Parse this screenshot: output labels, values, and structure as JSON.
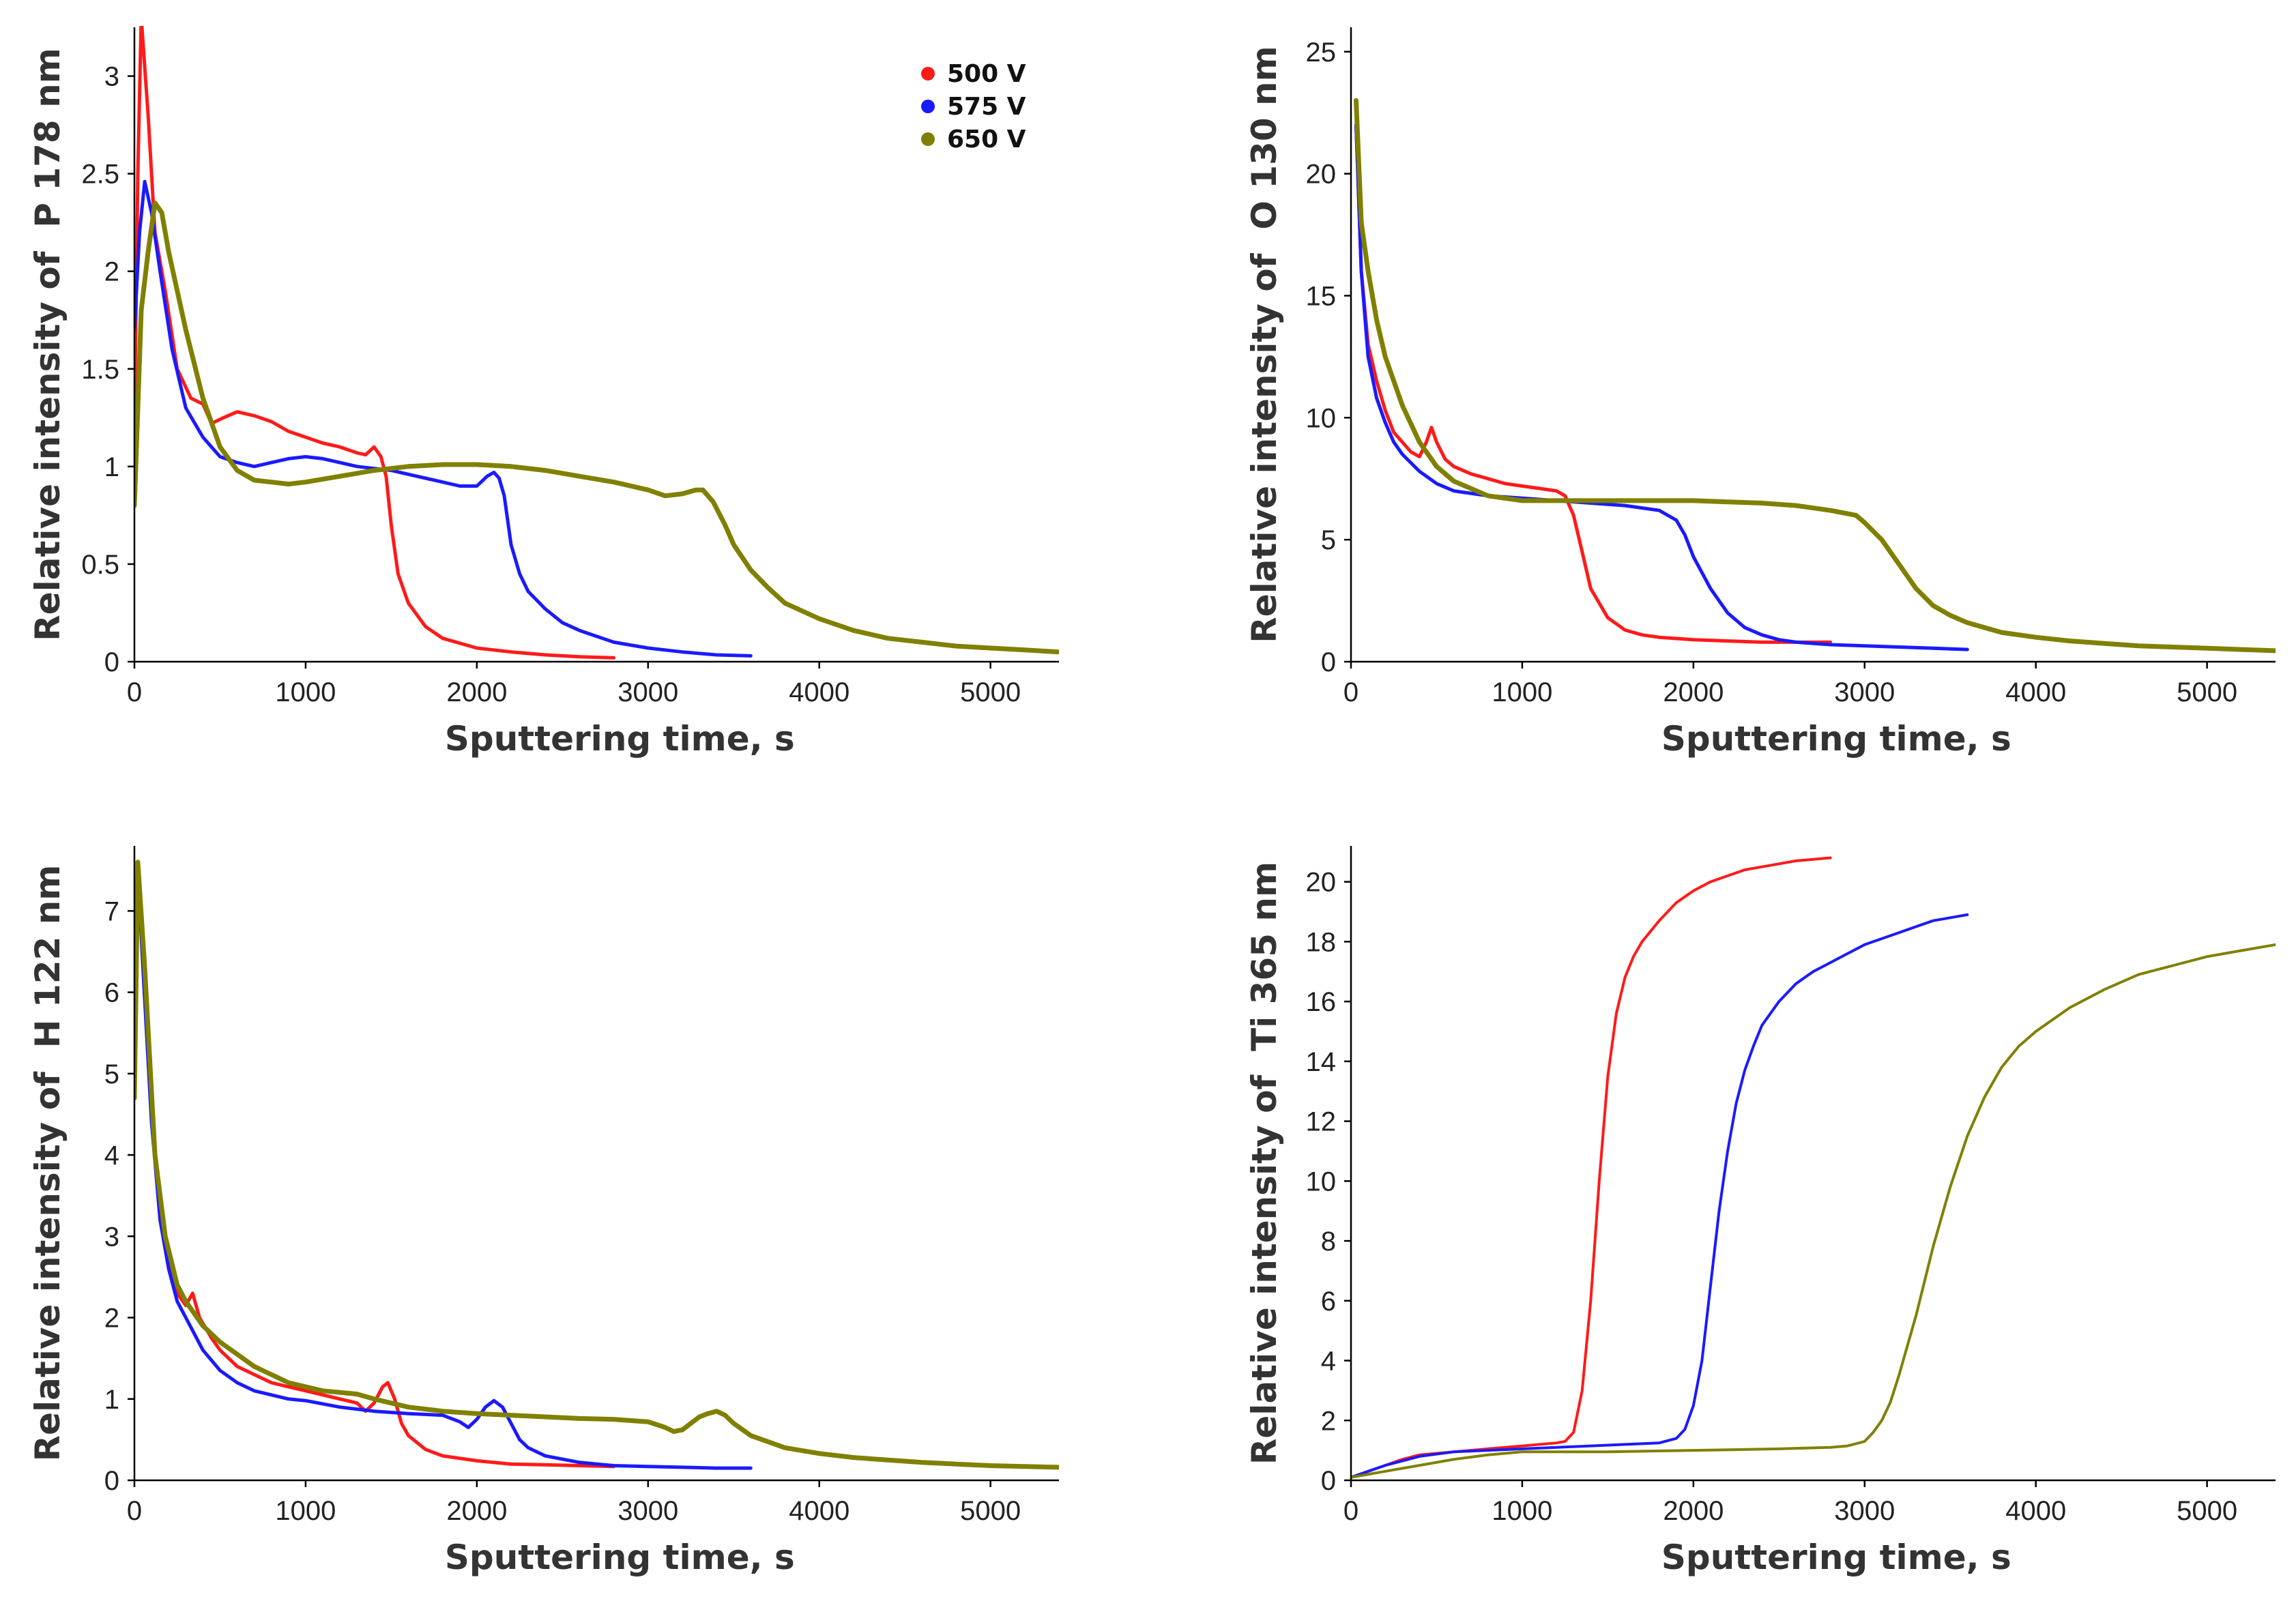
{
  "figure": {
    "background": "#ffffff"
  },
  "legend": {
    "entries": [
      {
        "label": "500 V",
        "color": "#ff1a1a"
      },
      {
        "label": "575 V",
        "color": "#1a1aff"
      },
      {
        "label": "650 V",
        "color": "#808000"
      }
    ]
  },
  "chart_data": [
    {
      "type": "line",
      "title": "",
      "xlabel": "Sputtering time, s",
      "ylabel": "Relative intensity of  P 178 nm",
      "xlim": [
        0,
        5400
      ],
      "ylim": [
        0,
        3.25
      ],
      "xticks": [
        0,
        1000,
        2000,
        3000,
        4000,
        5000
      ],
      "xtick_labels": [
        "0",
        "1000",
        "2000",
        "3000",
        "4000",
        "5000"
      ],
      "yticks": [
        0,
        0.5,
        1,
        1.5,
        2,
        2.5,
        3
      ],
      "ytick_labels": [
        "0",
        "0.5",
        "1",
        "1.5",
        "2",
        "2.5",
        "3"
      ],
      "legend": true,
      "series": [
        {
          "name": "500 V",
          "color": "#ff1a1a",
          "x": [
            0,
            20,
            40,
            80,
            120,
            180,
            250,
            330,
            400,
            450,
            520,
            600,
            700,
            800,
            900,
            1000,
            1100,
            1200,
            1300,
            1350,
            1400,
            1440,
            1470,
            1500,
            1540,
            1600,
            1700,
            1800,
            2000,
            2200,
            2400,
            2600,
            2800
          ],
          "y": [
            1.2,
            2.5,
            3.3,
            2.8,
            2.2,
            1.9,
            1.5,
            1.35,
            1.32,
            1.22,
            1.25,
            1.28,
            1.26,
            1.23,
            1.18,
            1.15,
            1.12,
            1.1,
            1.07,
            1.06,
            1.1,
            1.05,
            0.95,
            0.7,
            0.45,
            0.3,
            0.18,
            0.12,
            0.07,
            0.05,
            0.035,
            0.025,
            0.02
          ]
        },
        {
          "name": "575 V",
          "color": "#1a1aff",
          "x": [
            0,
            30,
            60,
            100,
            150,
            220,
            300,
            400,
            500,
            600,
            700,
            800,
            900,
            1000,
            1100,
            1200,
            1300,
            1400,
            1500,
            1600,
            1700,
            1800,
            1900,
            2000,
            2060,
            2100,
            2130,
            2160,
            2200,
            2250,
            2300,
            2400,
            2500,
            2600,
            2800,
            3000,
            3200,
            3400,
            3600
          ],
          "y": [
            1.7,
            2.2,
            2.46,
            2.3,
            2.0,
            1.6,
            1.3,
            1.15,
            1.05,
            1.02,
            1.0,
            1.02,
            1.04,
            1.05,
            1.04,
            1.02,
            1.0,
            0.99,
            0.98,
            0.96,
            0.94,
            0.92,
            0.9,
            0.9,
            0.95,
            0.97,
            0.94,
            0.85,
            0.6,
            0.45,
            0.36,
            0.27,
            0.2,
            0.16,
            0.1,
            0.07,
            0.05,
            0.035,
            0.03
          ]
        },
        {
          "name": "650 V",
          "color": "#808000",
          "x": [
            0,
            40,
            80,
            120,
            160,
            200,
            300,
            400,
            500,
            600,
            700,
            800,
            900,
            1000,
            1200,
            1400,
            1600,
            1800,
            2000,
            2200,
            2400,
            2600,
            2800,
            3000,
            3100,
            3200,
            3280,
            3320,
            3380,
            3450,
            3500,
            3600,
            3700,
            3800,
            4000,
            4200,
            4400,
            4600,
            4800,
            5000,
            5200,
            5400
          ],
          "y": [
            0.8,
            1.8,
            2.1,
            2.35,
            2.3,
            2.1,
            1.7,
            1.35,
            1.1,
            0.98,
            0.93,
            0.92,
            0.91,
            0.92,
            0.95,
            0.98,
            1.0,
            1.01,
            1.01,
            1.0,
            0.98,
            0.95,
            0.92,
            0.88,
            0.85,
            0.86,
            0.88,
            0.88,
            0.82,
            0.7,
            0.6,
            0.47,
            0.38,
            0.3,
            0.22,
            0.16,
            0.12,
            0.1,
            0.08,
            0.07,
            0.06,
            0.05
          ]
        }
      ]
    },
    {
      "type": "line",
      "title": "",
      "xlabel": "Sputtering time, s",
      "ylabel": "Relative intensity of  O 130 nm",
      "xlim": [
        0,
        5400
      ],
      "ylim": [
        0,
        26
      ],
      "xticks": [
        0,
        1000,
        2000,
        3000,
        4000,
        5000
      ],
      "xtick_labels": [
        "0",
        "1000",
        "2000",
        "3000",
        "4000",
        "5000"
      ],
      "yticks": [
        0,
        5,
        10,
        15,
        20,
        25
      ],
      "ytick_labels": [
        "0",
        "5",
        "10",
        "15",
        "20",
        "25"
      ],
      "legend": false,
      "series": [
        {
          "name": "500 V",
          "color": "#ff1a1a",
          "x": [
            30,
            60,
            100,
            150,
            200,
            250,
            300,
            350,
            400,
            440,
            470,
            500,
            550,
            600,
            700,
            800,
            900,
            1000,
            1100,
            1200,
            1250,
            1300,
            1350,
            1400,
            1500,
            1600,
            1700,
            1800,
            2000,
            2200,
            2400,
            2600,
            2800
          ],
          "y": [
            22,
            16,
            13,
            11.5,
            10.3,
            9.4,
            9.0,
            8.6,
            8.4,
            9.0,
            9.6,
            9.0,
            8.3,
            8.0,
            7.7,
            7.5,
            7.3,
            7.2,
            7.1,
            7.0,
            6.8,
            6.0,
            4.5,
            3.0,
            1.8,
            1.3,
            1.1,
            1.0,
            0.9,
            0.85,
            0.8,
            0.8,
            0.8
          ]
        },
        {
          "name": "575 V",
          "color": "#1a1aff",
          "x": [
            30,
            60,
            100,
            150,
            200,
            250,
            300,
            400,
            500,
            600,
            800,
            1000,
            1200,
            1400,
            1600,
            1800,
            1900,
            1950,
            2000,
            2100,
            2200,
            2300,
            2400,
            2500,
            2600,
            2800,
            3000,
            3200,
            3400,
            3600
          ],
          "y": [
            22,
            16,
            12.5,
            10.8,
            9.8,
            9.0,
            8.5,
            7.8,
            7.3,
            7.0,
            6.8,
            6.7,
            6.6,
            6.5,
            6.4,
            6.2,
            5.8,
            5.2,
            4.3,
            3.0,
            2.0,
            1.4,
            1.1,
            0.9,
            0.8,
            0.7,
            0.65,
            0.6,
            0.55,
            0.5
          ]
        },
        {
          "name": "650 V",
          "color": "#808000",
          "x": [
            30,
            60,
            100,
            150,
            200,
            300,
            400,
            500,
            600,
            800,
            1000,
            1200,
            1400,
            1600,
            1800,
            2000,
            2200,
            2400,
            2600,
            2800,
            2950,
            3000,
            3100,
            3200,
            3300,
            3400,
            3500,
            3600,
            3800,
            4000,
            4200,
            4400,
            4600,
            4800,
            5000,
            5200,
            5400
          ],
          "y": [
            23,
            18,
            16,
            14,
            12.5,
            10.5,
            9.0,
            8.0,
            7.4,
            6.8,
            6.6,
            6.6,
            6.6,
            6.6,
            6.6,
            6.6,
            6.55,
            6.5,
            6.4,
            6.2,
            6.0,
            5.7,
            5.0,
            4.0,
            3.0,
            2.3,
            1.9,
            1.6,
            1.2,
            1.0,
            0.85,
            0.75,
            0.65,
            0.6,
            0.55,
            0.5,
            0.45
          ]
        }
      ]
    },
    {
      "type": "line",
      "title": "",
      "xlabel": "Sputtering time, s",
      "ylabel": "Relative intensity of  H 122 nm",
      "xlim": [
        0,
        5400
      ],
      "ylim": [
        0,
        7.8
      ],
      "xticks": [
        0,
        1000,
        2000,
        3000,
        4000,
        5000
      ],
      "xtick_labels": [
        "0",
        "1000",
        "2000",
        "3000",
        "4000",
        "5000"
      ],
      "yticks": [
        0,
        1,
        2,
        3,
        4,
        5,
        6,
        7
      ],
      "ytick_labels": [
        "0",
        "1",
        "2",
        "3",
        "4",
        "5",
        "6",
        "7"
      ],
      "legend": false,
      "series": [
        {
          "name": "500 V",
          "color": "#ff1a1a",
          "x": [
            0,
            20,
            50,
            100,
            150,
            200,
            250,
            300,
            340,
            380,
            450,
            500,
            600,
            700,
            800,
            900,
            1000,
            1100,
            1200,
            1300,
            1350,
            1400,
            1450,
            1480,
            1520,
            1560,
            1600,
            1700,
            1800,
            2000,
            2200,
            2400,
            2600,
            2800
          ],
          "y": [
            5.5,
            7.6,
            6.5,
            4.5,
            3.3,
            2.7,
            2.3,
            2.15,
            2.3,
            2.0,
            1.75,
            1.6,
            1.4,
            1.3,
            1.2,
            1.15,
            1.1,
            1.05,
            1.0,
            0.95,
            0.85,
            0.95,
            1.15,
            1.2,
            1.0,
            0.7,
            0.55,
            0.38,
            0.3,
            0.24,
            0.2,
            0.19,
            0.18,
            0.17
          ]
        },
        {
          "name": "575 V",
          "color": "#1a1aff",
          "x": [
            0,
            20,
            50,
            100,
            150,
            200,
            250,
            300,
            400,
            500,
            600,
            700,
            800,
            900,
            1000,
            1200,
            1400,
            1600,
            1800,
            1900,
            1950,
            2000,
            2050,
            2100,
            2150,
            2200,
            2250,
            2300,
            2400,
            2600,
            2800,
            3000,
            3200,
            3400,
            3600
          ],
          "y": [
            6.0,
            7.5,
            6.3,
            4.4,
            3.2,
            2.6,
            2.2,
            2.0,
            1.6,
            1.35,
            1.2,
            1.1,
            1.05,
            1.0,
            0.98,
            0.9,
            0.85,
            0.82,
            0.8,
            0.72,
            0.65,
            0.75,
            0.9,
            0.98,
            0.9,
            0.7,
            0.5,
            0.4,
            0.3,
            0.22,
            0.18,
            0.17,
            0.16,
            0.15,
            0.15
          ]
        },
        {
          "name": "650 V",
          "color": "#808000",
          "x": [
            0,
            20,
            60,
            120,
            180,
            250,
            300,
            400,
            500,
            600,
            700,
            800,
            900,
            1000,
            1100,
            1200,
            1300,
            1400,
            1600,
            1800,
            2000,
            2200,
            2400,
            2600,
            2800,
            3000,
            3100,
            3150,
            3200,
            3250,
            3300,
            3350,
            3400,
            3450,
            3500,
            3600,
            3800,
            4000,
            4200,
            4400,
            4600,
            4800,
            5000,
            5200,
            5400
          ],
          "y": [
            4.7,
            7.6,
            6.3,
            4.0,
            3.0,
            2.4,
            2.2,
            1.9,
            1.7,
            1.55,
            1.4,
            1.3,
            1.2,
            1.15,
            1.1,
            1.08,
            1.06,
            1.0,
            0.9,
            0.85,
            0.82,
            0.8,
            0.78,
            0.76,
            0.75,
            0.72,
            0.65,
            0.6,
            0.62,
            0.7,
            0.78,
            0.82,
            0.85,
            0.8,
            0.7,
            0.55,
            0.4,
            0.33,
            0.28,
            0.25,
            0.22,
            0.2,
            0.18,
            0.17,
            0.16
          ]
        }
      ]
    },
    {
      "type": "line",
      "title": "",
      "xlabel": "Sputtering time, s",
      "ylabel": "Relative intensity of  Ti 365 nm",
      "xlim": [
        0,
        5400
      ],
      "ylim": [
        0,
        21.2
      ],
      "xticks": [
        0,
        1000,
        2000,
        3000,
        4000,
        5000
      ],
      "xtick_labels": [
        "0",
        "1000",
        "2000",
        "3000",
        "4000",
        "5000"
      ],
      "yticks": [
        0,
        2,
        4,
        6,
        8,
        10,
        12,
        14,
        16,
        18,
        20
      ],
      "ytick_labels": [
        "0",
        "2",
        "4",
        "6",
        "8",
        "10",
        "12",
        "14",
        "16",
        "18",
        "20"
      ],
      "legend": false,
      "series": [
        {
          "name": "500 V",
          "color": "#ff1a1a",
          "x": [
            0,
            100,
            200,
            300,
            400,
            500,
            600,
            700,
            800,
            900,
            1000,
            1100,
            1200,
            1250,
            1300,
            1350,
            1400,
            1450,
            1500,
            1550,
            1600,
            1650,
            1700,
            1800,
            1900,
            2000,
            2100,
            2200,
            2300,
            2400,
            2500,
            2600,
            2700,
            2800
          ],
          "y": [
            0.1,
            0.3,
            0.5,
            0.7,
            0.85,
            0.9,
            0.95,
            1.0,
            1.05,
            1.1,
            1.15,
            1.2,
            1.25,
            1.3,
            1.6,
            3.0,
            6.0,
            10.0,
            13.5,
            15.6,
            16.8,
            17.5,
            18.0,
            18.7,
            19.3,
            19.7,
            20.0,
            20.2,
            20.4,
            20.5,
            20.6,
            20.7,
            20.75,
            20.8
          ]
        },
        {
          "name": "575 V",
          "color": "#1a1aff",
          "x": [
            0,
            200,
            400,
            600,
            800,
            1000,
            1200,
            1400,
            1600,
            1800,
            1900,
            1950,
            2000,
            2050,
            2100,
            2150,
            2200,
            2250,
            2300,
            2350,
            2400,
            2500,
            2600,
            2700,
            2800,
            2900,
            3000,
            3100,
            3200,
            3300,
            3400,
            3500,
            3600
          ],
          "y": [
            0.1,
            0.5,
            0.8,
            0.95,
            1.0,
            1.05,
            1.1,
            1.15,
            1.2,
            1.25,
            1.4,
            1.7,
            2.5,
            4.0,
            6.5,
            9.0,
            11.0,
            12.6,
            13.7,
            14.5,
            15.2,
            16.0,
            16.6,
            17.0,
            17.3,
            17.6,
            17.9,
            18.1,
            18.3,
            18.5,
            18.7,
            18.8,
            18.9
          ]
        },
        {
          "name": "650 V",
          "color": "#808000",
          "x": [
            0,
            200,
            400,
            600,
            800,
            1000,
            1500,
            2000,
            2500,
            2800,
            2900,
            3000,
            3050,
            3100,
            3150,
            3200,
            3300,
            3400,
            3500,
            3600,
            3700,
            3800,
            3900,
            4000,
            4200,
            4400,
            4600,
            4800,
            5000,
            5200,
            5400
          ],
          "y": [
            0.1,
            0.3,
            0.5,
            0.7,
            0.85,
            0.95,
            0.95,
            1.0,
            1.05,
            1.1,
            1.15,
            1.3,
            1.6,
            2.0,
            2.6,
            3.5,
            5.5,
            7.8,
            9.8,
            11.5,
            12.8,
            13.8,
            14.5,
            15.0,
            15.8,
            16.4,
            16.9,
            17.2,
            17.5,
            17.7,
            17.9
          ]
        }
      ]
    }
  ]
}
